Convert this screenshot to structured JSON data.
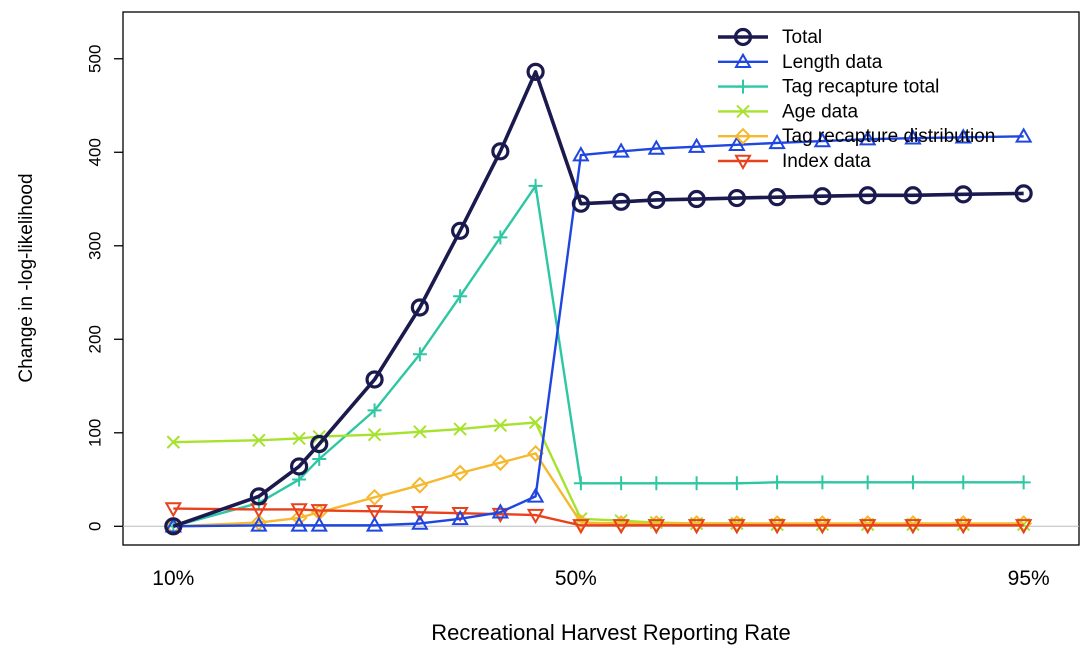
{
  "chart_data": {
    "type": "line",
    "title": "",
    "xlabel": "Recreational Harvest Reporting Rate",
    "ylabel": "Change in -log-likelihood",
    "xlim": [
      0.05,
      1.0
    ],
    "ylim": [
      -20,
      550
    ],
    "y_ticks": [
      0,
      100,
      200,
      300,
      400,
      500
    ],
    "x_tick_labels": [
      {
        "value": 0.1,
        "label": "10%"
      },
      {
        "value": 0.5,
        "label": "50%"
      },
      {
        "value": 0.95,
        "label": "95%"
      }
    ],
    "grid": false,
    "legend_position": "top-right",
    "series": [
      {
        "name": "Total",
        "color": "#1a1a4e",
        "marker": "circle",
        "x": [
          0.1,
          0.185,
          0.225,
          0.245,
          0.3,
          0.345,
          0.385,
          0.425,
          0.46,
          0.505,
          0.545,
          0.58,
          0.62,
          0.66,
          0.7,
          0.745,
          0.79,
          0.835,
          0.885,
          0.945
        ],
        "values": [
          0,
          32,
          64,
          88,
          157,
          234,
          316,
          401,
          486,
          345,
          347,
          349,
          350,
          351,
          352,
          353,
          354,
          354,
          355,
          356
        ]
      },
      {
        "name": "Length data",
        "color": "#1f46e0",
        "marker": "triangle-up",
        "x": [
          0.1,
          0.185,
          0.225,
          0.245,
          0.3,
          0.345,
          0.385,
          0.425,
          0.46,
          0.505,
          0.545,
          0.58,
          0.62,
          0.66,
          0.7,
          0.745,
          0.79,
          0.835,
          0.885,
          0.945
        ],
        "values": [
          0,
          1,
          1,
          1,
          1,
          3,
          8,
          15,
          32,
          397,
          401,
          404,
          406,
          408,
          410,
          412,
          414,
          415,
          416,
          417
        ]
      },
      {
        "name": "Tag recapture total",
        "color": "#2ec7a3",
        "marker": "plus",
        "x": [
          0.1,
          0.185,
          0.225,
          0.245,
          0.3,
          0.345,
          0.385,
          0.425,
          0.46,
          0.505,
          0.545,
          0.58,
          0.62,
          0.66,
          0.7,
          0.745,
          0.79,
          0.835,
          0.885,
          0.945
        ],
        "values": [
          0,
          25,
          50,
          72,
          124,
          184,
          246,
          309,
          364,
          46,
          46,
          46,
          46,
          46,
          47,
          47,
          47,
          47,
          47,
          47
        ]
      },
      {
        "name": "Age data",
        "color": "#a6e22e",
        "marker": "cross",
        "x": [
          0.1,
          0.185,
          0.225,
          0.245,
          0.3,
          0.345,
          0.385,
          0.425,
          0.46,
          0.505,
          0.545,
          0.58,
          0.62,
          0.66,
          0.7,
          0.745,
          0.79,
          0.835,
          0.885,
          0.945
        ],
        "values": [
          90,
          92,
          94,
          96,
          98,
          101,
          104,
          108,
          111,
          8,
          6,
          4,
          3,
          3,
          2,
          2,
          2,
          2,
          2,
          2
        ]
      },
      {
        "name": "Tag recapture distribution",
        "color": "#f5b82e",
        "marker": "diamond",
        "x": [
          0.1,
          0.185,
          0.225,
          0.245,
          0.3,
          0.345,
          0.385,
          0.425,
          0.46,
          0.505,
          0.545,
          0.58,
          0.62,
          0.66,
          0.7,
          0.745,
          0.79,
          0.835,
          0.885,
          0.945
        ],
        "values": [
          0,
          4,
          9,
          15,
          31,
          44,
          57,
          68,
          78,
          4,
          3,
          3,
          3,
          3,
          3,
          3,
          3,
          3,
          3,
          3
        ]
      },
      {
        "name": "Index data",
        "color": "#e8411c",
        "marker": "triangle-down",
        "x": [
          0.1,
          0.185,
          0.225,
          0.245,
          0.3,
          0.345,
          0.385,
          0.425,
          0.46,
          0.505,
          0.545,
          0.58,
          0.62,
          0.66,
          0.7,
          0.745,
          0.79,
          0.835,
          0.885,
          0.945
        ],
        "values": [
          19,
          18,
          18,
          17,
          16,
          15,
          14,
          13,
          12,
          1,
          1,
          1,
          1,
          1,
          1,
          1,
          1,
          1,
          1,
          1
        ]
      }
    ]
  }
}
